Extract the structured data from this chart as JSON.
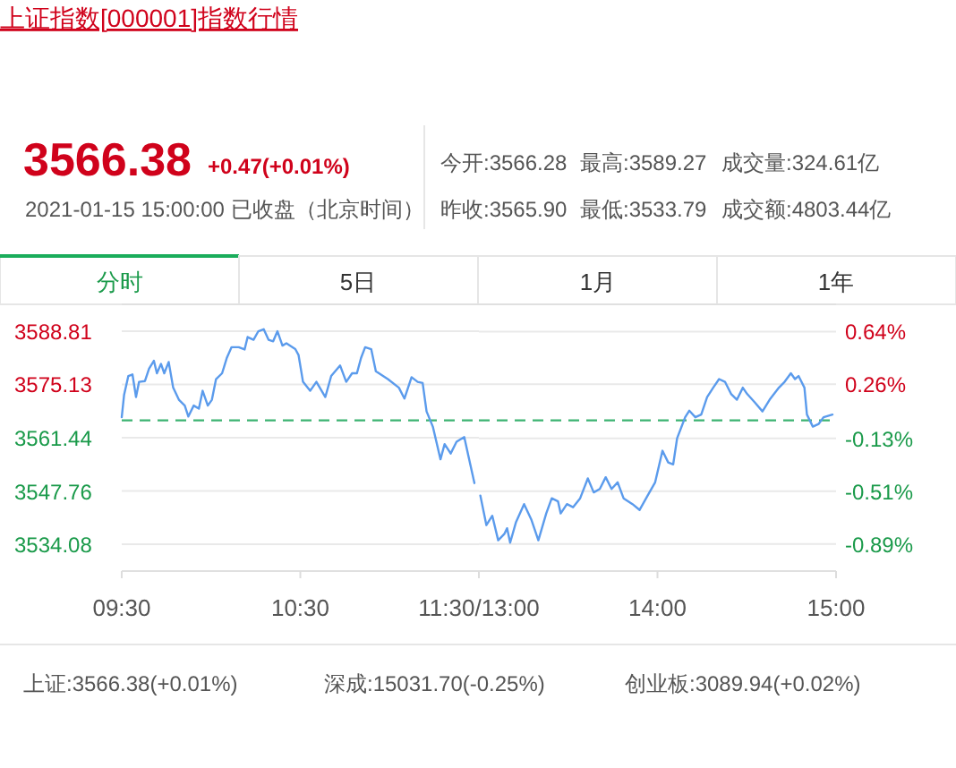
{
  "chart_data": [
    {
      "type": "line",
      "title": "上证指数[000001]指数行情",
      "x": [
        9.5,
        9.513,
        9.537,
        9.56,
        9.58,
        9.597,
        9.63,
        9.653,
        9.68,
        9.697,
        9.72,
        9.738,
        9.763,
        9.788,
        9.82,
        9.853,
        9.873,
        9.903,
        9.932,
        9.953,
        9.982,
        10.005,
        10.028,
        10.062,
        10.088,
        10.115,
        10.155,
        10.188,
        10.205,
        10.238,
        10.265,
        10.295,
        10.322,
        10.348,
        10.372,
        10.4,
        10.422,
        10.472,
        10.49,
        10.515,
        10.555,
        10.59,
        10.64,
        10.673,
        10.723,
        10.757,
        10.79,
        10.817,
        10.84,
        10.863,
        10.897,
        10.923,
        10.99,
        11.052,
        11.083,
        11.123,
        11.157,
        11.185,
        11.207,
        11.242,
        11.285,
        11.308,
        11.342,
        11.375,
        11.418,
        11.442,
        11.475
      ],
      "series": [
        {
          "color": "#5b9bec",
          "values": [
            3566.7,
            3572.4,
            3577.3,
            3577.7,
            3571.9,
            3575.8,
            3576.0,
            3579.2,
            3581.2,
            3578.0,
            3580.4,
            3578.0,
            3580.9,
            3574.3,
            3571.2,
            3569.7,
            3566.9,
            3569.7,
            3568.9,
            3573.5,
            3569.7,
            3571.2,
            3576.5,
            3578.0,
            3581.9,
            3584.7,
            3584.7,
            3584.1,
            3587.3,
            3586.6,
            3588.8,
            3589.3,
            3586.6,
            3586.2,
            3588.8,
            3585.1,
            3585.7,
            3584.2,
            3582.7,
            3575.8,
            3573.5,
            3575.8,
            3571.9,
            3577.3,
            3580.0,
            3575.8,
            3578.0,
            3578.0,
            3581.9,
            3584.7,
            3584.2,
            3578.5,
            3576.5,
            3574.3,
            3571.5,
            3577.0,
            3575.8,
            3575.5,
            3568.2,
            3564.3,
            3555.9,
            3559.8,
            3557.4,
            3560.4,
            3561.6,
            3556.6,
            3549.8
          ]
        }
      ],
      "xlim": [
        9.5,
        11.5
      ],
      "xticks": [
        {
          "value": 9.5,
          "label": "09:30"
        },
        {
          "value": 10.5,
          "label": "10:30"
        },
        {
          "value": 11.5,
          "label": "11:30/13:00"
        }
      ],
      "ylim": [
        3527.2,
        3595.7
      ],
      "yticks": [
        3588.81,
        3575.13,
        3561.44,
        3547.76,
        3534.08
      ],
      "ref_lines": [
        {
          "axis": "y",
          "value": 3565.9,
          "color": "#3cb371",
          "line_style": "dashed"
        }
      ],
      "grid": "y",
      "annotations": [
        "3566.38",
        "+0.47(+0.01%)",
        "2021-01-15 15:00:00 已收盘（北京时间）",
        "今开:3566.28",
        "最高:3589.27",
        "成交量:324.61亿",
        "昨收:3565.90",
        "最低:3533.79",
        "成交额:4803.44亿",
        "分时",
        "5日",
        "1月",
        "1年",
        "上证:3566.38(+0.01%)",
        "深成:15031.70(-0.25%)",
        "创业板:3089.94(+0.02%)"
      ]
    },
    {
      "type": "line",
      "x": [
        13.008,
        13.042,
        13.075,
        13.108,
        13.142,
        13.158,
        13.175,
        13.208,
        13.253,
        13.293,
        13.333,
        13.377,
        13.408,
        13.443,
        13.458,
        13.493,
        13.527,
        13.567,
        13.61,
        13.643,
        13.677,
        13.71,
        13.743,
        13.777,
        13.81,
        13.86,
        13.9,
        13.945,
        13.987,
        14.028,
        14.06,
        14.088,
        14.11,
        14.155,
        14.178,
        14.212,
        14.245,
        14.278,
        14.312,
        14.345,
        14.378,
        14.412,
        14.445,
        14.478,
        14.502,
        14.547,
        14.588,
        14.628,
        14.68,
        14.712,
        14.747,
        14.77,
        14.79,
        14.823,
        14.837,
        14.87,
        14.903,
        14.93,
        14.98
      ],
      "series": [
        {
          "color": "#5b9bec",
          "values": [
            3546.6,
            3539.0,
            3541.4,
            3535.1,
            3536.7,
            3538.2,
            3534.5,
            3539.8,
            3544.4,
            3540.5,
            3535.1,
            3542.0,
            3545.9,
            3545.1,
            3542.0,
            3544.4,
            3543.6,
            3545.9,
            3551.0,
            3547.4,
            3548.3,
            3551.3,
            3548.3,
            3550.0,
            3545.9,
            3544.4,
            3542.9,
            3546.6,
            3550.0,
            3558.1,
            3555.1,
            3554.6,
            3561.3,
            3566.7,
            3568.4,
            3566.7,
            3567.4,
            3571.9,
            3574.3,
            3576.5,
            3575.8,
            3572.7,
            3571.2,
            3574.3,
            3572.7,
            3570.4,
            3568.2,
            3571.2,
            3574.3,
            3575.8,
            3578.0,
            3576.5,
            3577.3,
            3574.3,
            3567.4,
            3564.3,
            3565.0,
            3566.7,
            3567.4
          ]
        }
      ],
      "xlim": [
        13,
        15
      ],
      "xticks": [
        {
          "value": 14,
          "label": "14:00"
        },
        {
          "value": 15,
          "label": "15:00"
        }
      ],
      "ylim": [
        3527.2,
        3595.7
      ],
      "y2lim": [
        -1.085,
        0.836
      ],
      "y2ticks": [
        {
          "value": 0.64,
          "label": "0.64%"
        },
        {
          "value": 0.26,
          "label": "0.26%"
        },
        {
          "value": -0.13,
          "label": "-0.13%"
        },
        {
          "value": -0.51,
          "label": "-0.51%"
        },
        {
          "value": -0.89,
          "label": "-0.89%"
        }
      ],
      "ref_lines": [
        {
          "axis": "y",
          "value": 3565.9,
          "color": "#3cb371",
          "line_style": "dashed"
        }
      ],
      "grid": "y"
    }
  ]
}
